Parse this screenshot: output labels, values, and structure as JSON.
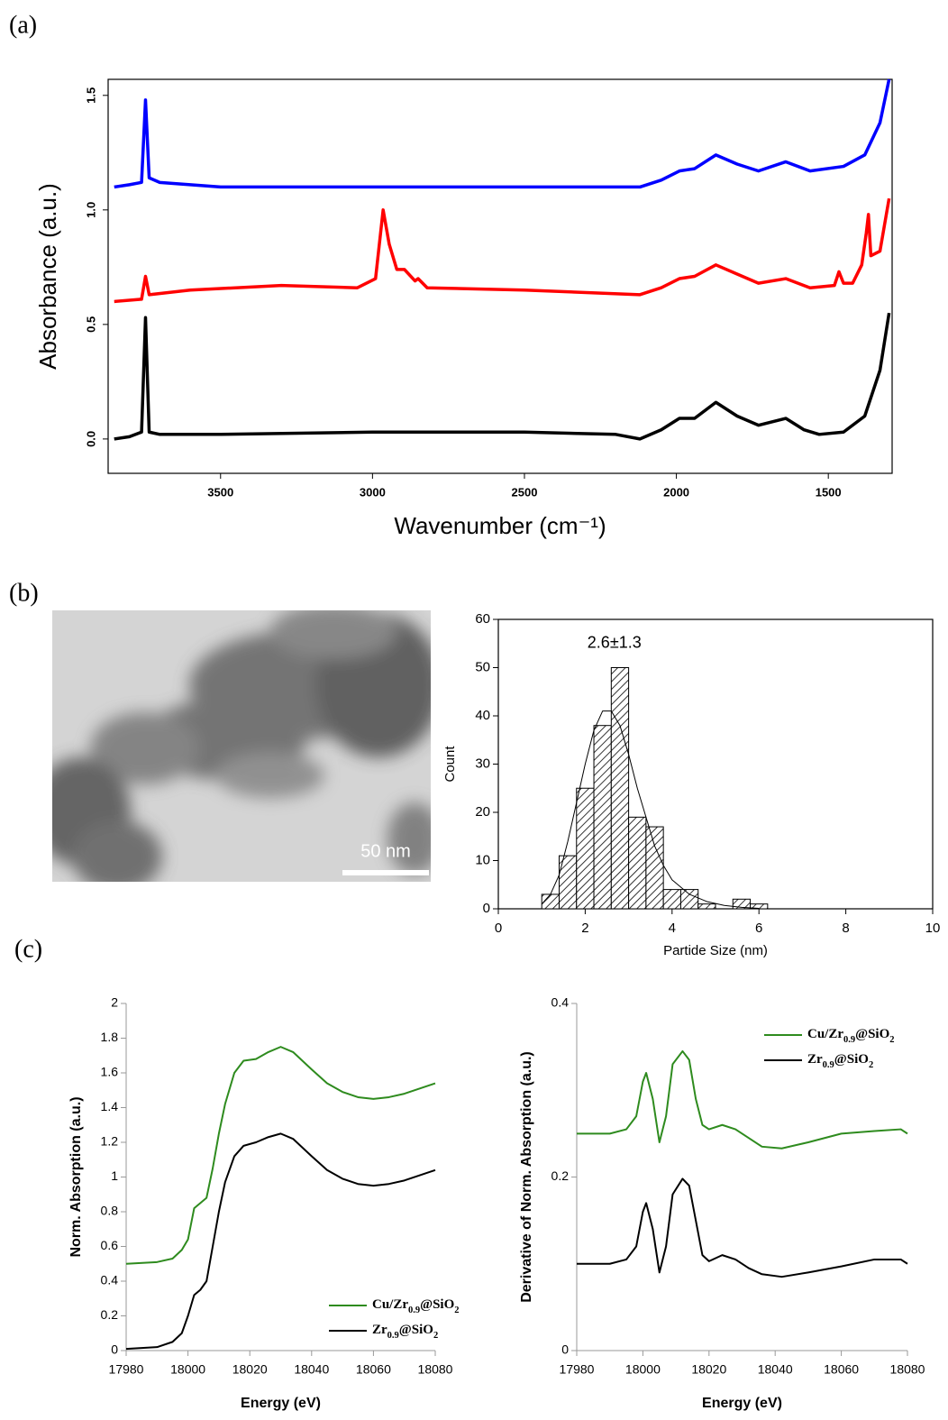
{
  "panel_labels": [
    "(a)",
    "(b)",
    "(c)"
  ],
  "image": {
    "scale_bar": "50 nm"
  },
  "chart_data": [
    {
      "type": "line",
      "xlabel": "Wavenumber (cm⁻¹)",
      "ylabel": "Absorbance (a.u.)",
      "xlim": [
        3870,
        1290
      ],
      "ylim": [
        -0.15,
        1.57
      ],
      "xticks": [
        3500,
        3000,
        2500,
        2000,
        1500
      ],
      "yticks": [
        {
          "value": 0,
          "label": "0.0"
        },
        {
          "value": 0.5,
          "label": "0.5"
        },
        {
          "value": 1,
          "label": "1.0"
        },
        {
          "value": 1.5,
          "label": "1.5"
        }
      ],
      "series": [
        {
          "color": "#0000ff",
          "x": [
            3850,
            3800,
            3760,
            3747,
            3735,
            3700,
            3500,
            3000,
            2500,
            2120,
            2050,
            1990,
            1940,
            1870,
            1800,
            1730,
            1640,
            1560,
            1450,
            1380,
            1330,
            1300
          ],
          "values": [
            1.1,
            1.11,
            1.12,
            1.48,
            1.14,
            1.12,
            1.1,
            1.1,
            1.1,
            1.1,
            1.13,
            1.17,
            1.18,
            1.24,
            1.2,
            1.17,
            1.21,
            1.17,
            1.19,
            1.24,
            1.38,
            1.57
          ]
        },
        {
          "color": "#ff0000",
          "x": [
            3850,
            3760,
            3747,
            3735,
            3600,
            3300,
            3050,
            2990,
            2965,
            2945,
            2920,
            2895,
            2860,
            2850,
            2820,
            2500,
            2120,
            2050,
            1990,
            1940,
            1870,
            1800,
            1730,
            1640,
            1560,
            1480,
            1465,
            1450,
            1420,
            1390,
            1375,
            1368,
            1360,
            1330,
            1300
          ],
          "values": [
            0.6,
            0.61,
            0.71,
            0.63,
            0.65,
            0.67,
            0.66,
            0.7,
            1.0,
            0.85,
            0.74,
            0.74,
            0.69,
            0.7,
            0.66,
            0.65,
            0.63,
            0.66,
            0.7,
            0.71,
            0.76,
            0.72,
            0.68,
            0.7,
            0.66,
            0.67,
            0.73,
            0.68,
            0.68,
            0.76,
            0.9,
            0.98,
            0.8,
            0.82,
            1.05
          ]
        },
        {
          "color": "#000000",
          "x": [
            3850,
            3800,
            3760,
            3747,
            3735,
            3700,
            3500,
            3000,
            2500,
            2200,
            2120,
            2050,
            1990,
            1940,
            1870,
            1800,
            1730,
            1640,
            1580,
            1530,
            1450,
            1380,
            1330,
            1300
          ],
          "values": [
            0.0,
            0.01,
            0.03,
            0.53,
            0.03,
            0.02,
            0.02,
            0.03,
            0.03,
            0.02,
            0.0,
            0.04,
            0.09,
            0.09,
            0.16,
            0.1,
            0.06,
            0.09,
            0.04,
            0.02,
            0.03,
            0.1,
            0.3,
            0.55
          ]
        }
      ]
    },
    {
      "type": "histogram",
      "xlabel": "Partide Size (nm)",
      "ylabel": "Count",
      "annotation": "2.6±1.3",
      "xlim": [
        0,
        10
      ],
      "ylim": [
        0,
        60
      ],
      "xticks": [
        0,
        2,
        4,
        6,
        8,
        10
      ],
      "yticks": [
        0,
        10,
        20,
        30,
        40,
        50,
        60
      ],
      "bins": [
        1.0,
        1.4,
        1.8,
        2.2,
        2.6,
        3.0,
        3.4,
        3.8,
        4.2,
        4.6,
        5.0,
        5.4,
        5.8,
        6.2
      ],
      "counts": [
        3,
        11,
        25,
        38,
        50,
        19,
        17,
        4,
        4,
        1,
        0,
        2,
        1
      ],
      "color": "#000000",
      "fit": {
        "x": [
          1.0,
          1.2,
          1.4,
          1.6,
          1.8,
          2.0,
          2.2,
          2.4,
          2.6,
          2.8,
          3.0,
          3.2,
          3.4,
          3.6,
          3.8,
          4.0,
          4.4,
          4.8,
          5.2,
          5.6,
          6.0
        ],
        "values": [
          1,
          3,
          7,
          14,
          22,
          30,
          37,
          41,
          41,
          38,
          32,
          25,
          19,
          13,
          9,
          6,
          3,
          1.5,
          0.7,
          0.3,
          0.1
        ]
      }
    },
    {
      "type": "line",
      "xlabel": "Energy (eV)",
      "ylabel": "Norm. Absorption (a.u.)",
      "xlim": [
        17980,
        18080
      ],
      "ylim": [
        0,
        2
      ],
      "xticks": [
        17980,
        18000,
        18020,
        18040,
        18060,
        18080
      ],
      "yticks": [
        0,
        0.2,
        0.4,
        0.6,
        0.8,
        1,
        1.2,
        1.4,
        1.6,
        1.8,
        2
      ],
      "x": [
        17980,
        17990,
        17995,
        17998,
        18000,
        18002,
        18004,
        18006,
        18008,
        18010,
        18012,
        18015,
        18018,
        18022,
        18026,
        18030,
        18034,
        18040,
        18045,
        18050,
        18055,
        18060,
        18065,
        18070,
        18075,
        18080
      ],
      "series": [
        {
          "name": "Cu/Zr0.9@SiO2",
          "color": "#2e8b1e",
          "values": [
            0.5,
            0.51,
            0.53,
            0.58,
            0.64,
            0.82,
            0.85,
            0.88,
            1.05,
            1.25,
            1.42,
            1.6,
            1.67,
            1.68,
            1.72,
            1.75,
            1.72,
            1.62,
            1.54,
            1.49,
            1.46,
            1.45,
            1.46,
            1.48,
            1.51,
            1.54
          ]
        },
        {
          "name": "Zr0.9@SiO2",
          "color": "#000000",
          "values": [
            0.01,
            0.02,
            0.05,
            0.1,
            0.2,
            0.32,
            0.35,
            0.4,
            0.6,
            0.8,
            0.97,
            1.12,
            1.18,
            1.2,
            1.23,
            1.25,
            1.22,
            1.12,
            1.04,
            0.99,
            0.96,
            0.95,
            0.96,
            0.98,
            1.01,
            1.04
          ]
        }
      ]
    },
    {
      "type": "line",
      "xlabel": "Energy (eV)",
      "ylabel": "Derivative of Norm. Absorption (a.u.)",
      "xlim": [
        17980,
        18080
      ],
      "ylim": [
        0,
        0.4
      ],
      "xticks": [
        17980,
        18000,
        18020,
        18040,
        18060,
        18080
      ],
      "yticks": [
        0,
        0.2,
        0.4
      ],
      "x": [
        17980,
        17990,
        17995,
        17998,
        18000,
        18001,
        18003,
        18005,
        18007,
        18009,
        18012,
        18014,
        18016,
        18018,
        18020,
        18024,
        18028,
        18032,
        18036,
        18042,
        18050,
        18060,
        18070,
        18078,
        18080
      ],
      "series": [
        {
          "name": "Cu/Zr0.9@SiO2",
          "color": "#2e8b1e",
          "values": [
            0.25,
            0.25,
            0.255,
            0.27,
            0.31,
            0.32,
            0.29,
            0.24,
            0.27,
            0.33,
            0.345,
            0.335,
            0.29,
            0.26,
            0.255,
            0.26,
            0.255,
            0.245,
            0.235,
            0.233,
            0.24,
            0.25,
            0.253,
            0.255,
            0.25
          ]
        },
        {
          "name": "Zr0.9@SiO2",
          "color": "#000000",
          "values": [
            0.1,
            0.1,
            0.105,
            0.12,
            0.16,
            0.17,
            0.14,
            0.09,
            0.12,
            0.18,
            0.198,
            0.19,
            0.15,
            0.11,
            0.103,
            0.11,
            0.105,
            0.095,
            0.088,
            0.085,
            0.09,
            0.097,
            0.105,
            0.105,
            0.1
          ]
        }
      ]
    }
  ]
}
